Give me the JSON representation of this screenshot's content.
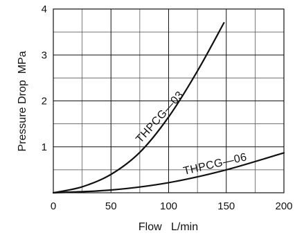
{
  "chart_data": {
    "type": "line",
    "xlabel": "Flow   L/min",
    "ylabel": "Pressure Drop  MPa",
    "xlim": [
      0,
      200
    ],
    "ylim": [
      0,
      4
    ],
    "x_ticks": [
      "0",
      "50",
      "100",
      "150",
      "200"
    ],
    "y_ticks": [
      "1",
      "2",
      "3",
      "4"
    ],
    "x_minor_grid": [
      25,
      75,
      125,
      175
    ],
    "y_minor_grid": [
      0.5,
      1.5,
      2.5,
      3.5
    ],
    "grid": true,
    "series": [
      {
        "name": "THPCG—03",
        "x": [
          0,
          25,
          50,
          75,
          100,
          125,
          148
        ],
        "y": [
          0,
          0.13,
          0.4,
          0.88,
          1.65,
          2.65,
          3.7
        ]
      },
      {
        "name": "THPCG—06",
        "x": [
          0,
          50,
          100,
          150,
          200
        ],
        "y": [
          0,
          0.06,
          0.22,
          0.5,
          0.87
        ]
      }
    ]
  }
}
